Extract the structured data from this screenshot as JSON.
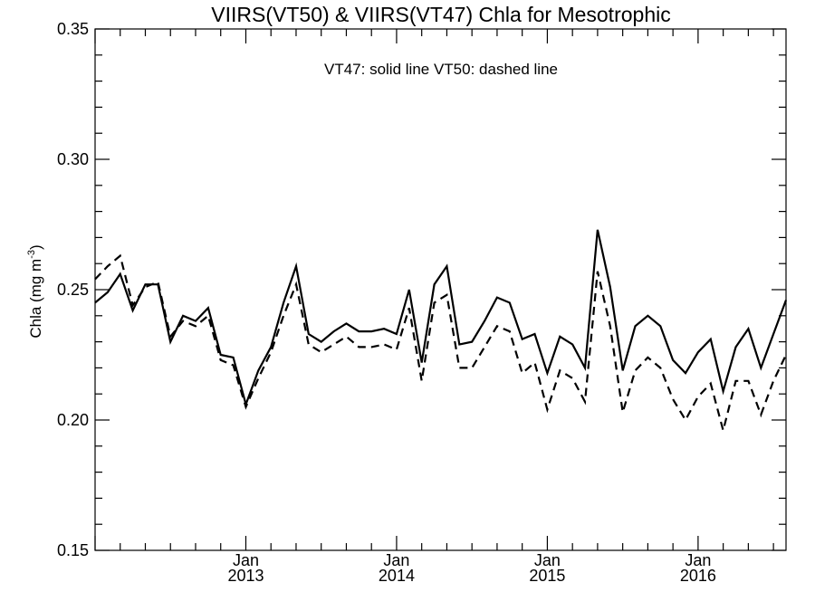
{
  "chart_data": {
    "type": "line",
    "title": "VIIRS(VT50) & VIIRS(VT47)  Chla for Mesotrophic",
    "annotation": "VT47: solid line   VT50: dashed line",
    "ylabel": {
      "text": "Chla (mg m",
      "sup": "-3",
      "close": ")"
    },
    "xlabel": "",
    "ylim": [
      0.15,
      0.35
    ],
    "yticks": [
      "0.15",
      "0.20",
      "0.25",
      "0.30",
      "0.35"
    ],
    "xlim": [
      "2012-01",
      "2016-08"
    ],
    "xticks": [
      {
        "month": "Jan",
        "year": "2013"
      },
      {
        "month": "Jan",
        "year": "2014"
      },
      {
        "month": "Jan",
        "year": "2015"
      },
      {
        "month": "Jan",
        "year": "2016"
      }
    ],
    "grid": false,
    "x": [
      "2012-01",
      "2012-02",
      "2012-03",
      "2012-04",
      "2012-05",
      "2012-06",
      "2012-07",
      "2012-08",
      "2012-09",
      "2012-10",
      "2012-11",
      "2012-12",
      "2013-01",
      "2013-02",
      "2013-03",
      "2013-04",
      "2013-05",
      "2013-06",
      "2013-07",
      "2013-08",
      "2013-09",
      "2013-10",
      "2013-11",
      "2013-12",
      "2014-01",
      "2014-02",
      "2014-03",
      "2014-04",
      "2014-05",
      "2014-06",
      "2014-07",
      "2014-08",
      "2014-09",
      "2014-10",
      "2014-11",
      "2014-12",
      "2015-01",
      "2015-02",
      "2015-03",
      "2015-04",
      "2015-05",
      "2015-06",
      "2015-07",
      "2015-08",
      "2015-09",
      "2015-10",
      "2015-11",
      "2015-12",
      "2016-01",
      "2016-02",
      "2016-03",
      "2016-04",
      "2016-05",
      "2016-06",
      "2016-07",
      "2016-08"
    ],
    "series": [
      {
        "name": "VT47",
        "style": "solid",
        "values": [
          0.245,
          0.249,
          0.256,
          0.242,
          0.252,
          0.252,
          0.23,
          0.24,
          0.238,
          0.243,
          0.225,
          0.224,
          0.206,
          0.219,
          0.228,
          0.245,
          0.259,
          0.233,
          0.23,
          0.234,
          0.237,
          0.234,
          0.234,
          0.235,
          0.233,
          0.25,
          0.222,
          0.252,
          0.259,
          0.229,
          0.23,
          0.238,
          0.247,
          0.245,
          0.231,
          0.233,
          0.218,
          0.232,
          0.229,
          0.22,
          0.273,
          0.251,
          0.219,
          0.236,
          0.24,
          0.236,
          0.223,
          0.218,
          0.226,
          0.231,
          0.211,
          0.228,
          0.235,
          0.22,
          0.233,
          0.246
        ]
      },
      {
        "name": "VT50",
        "style": "dashed",
        "values": [
          0.254,
          0.259,
          0.263,
          0.244,
          0.251,
          0.253,
          0.232,
          0.238,
          0.236,
          0.24,
          0.223,
          0.221,
          0.205,
          0.216,
          0.226,
          0.24,
          0.252,
          0.229,
          0.226,
          0.229,
          0.232,
          0.228,
          0.228,
          0.229,
          0.227,
          0.243,
          0.215,
          0.245,
          0.248,
          0.22,
          0.22,
          0.228,
          0.236,
          0.234,
          0.218,
          0.222,
          0.204,
          0.219,
          0.216,
          0.207,
          0.257,
          0.236,
          0.203,
          0.219,
          0.224,
          0.22,
          0.208,
          0.2,
          0.209,
          0.214,
          0.196,
          0.215,
          0.215,
          0.202,
          0.215,
          0.225
        ]
      }
    ]
  }
}
